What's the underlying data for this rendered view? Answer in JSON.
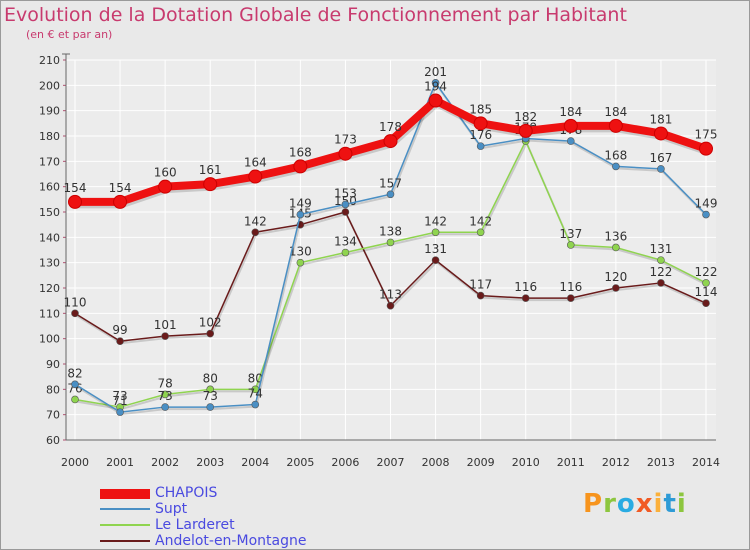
{
  "chart_data": {
    "type": "line",
    "title": "Evolution de la Dotation Globale de Fonctionnement par Habitant",
    "subtitle": "(en € et par an)",
    "xlabel": "",
    "ylabel": "",
    "ylim": [
      60,
      210
    ],
    "yticks": [
      60,
      70,
      80,
      90,
      100,
      110,
      120,
      130,
      140,
      150,
      160,
      170,
      180,
      190,
      200,
      210
    ],
    "grid": true,
    "legend_position": "bottom-left",
    "x": [
      "2000",
      "2001",
      "2002",
      "2003",
      "2004",
      "2005",
      "2006",
      "2007",
      "2008",
      "2009",
      "2010",
      "2011",
      "2012",
      "2013",
      "2014"
    ],
    "series": [
      {
        "name": "Andelot-en-Montagne",
        "color": "#6a1b1b",
        "values": [
          110,
          99,
          101,
          102,
          142,
          145,
          150,
          113,
          131,
          117,
          116,
          116,
          120,
          122,
          114
        ]
      },
      {
        "name": "Le Larderet",
        "color": "#8fd44f",
        "values": [
          76,
          73,
          78,
          80,
          80,
          130,
          134,
          138,
          142,
          142,
          178,
          137,
          136,
          131,
          122
        ]
      },
      {
        "name": "Supt",
        "color": "#4a8fc4",
        "values": [
          82,
          71,
          73,
          73,
          74,
          149,
          153,
          157,
          201,
          176,
          179,
          178,
          168,
          167,
          149
        ]
      },
      {
        "name": "CHAPOIS",
        "color": "#ee1111",
        "values": [
          154,
          154,
          160,
          161,
          164,
          168,
          173,
          178,
          194,
          185,
          182,
          184,
          184,
          181,
          175
        ]
      }
    ]
  },
  "legend": {
    "items": [
      {
        "label": "CHAPOIS",
        "color": "#ee1111"
      },
      {
        "label": "Supt",
        "color": "#4a8fc4"
      },
      {
        "label": "Le Larderet",
        "color": "#8fd44f"
      },
      {
        "label": "Andelot-en-Montagne",
        "color": "#6a1b1b"
      }
    ]
  },
  "logo": {
    "text": "Proxiti"
  }
}
